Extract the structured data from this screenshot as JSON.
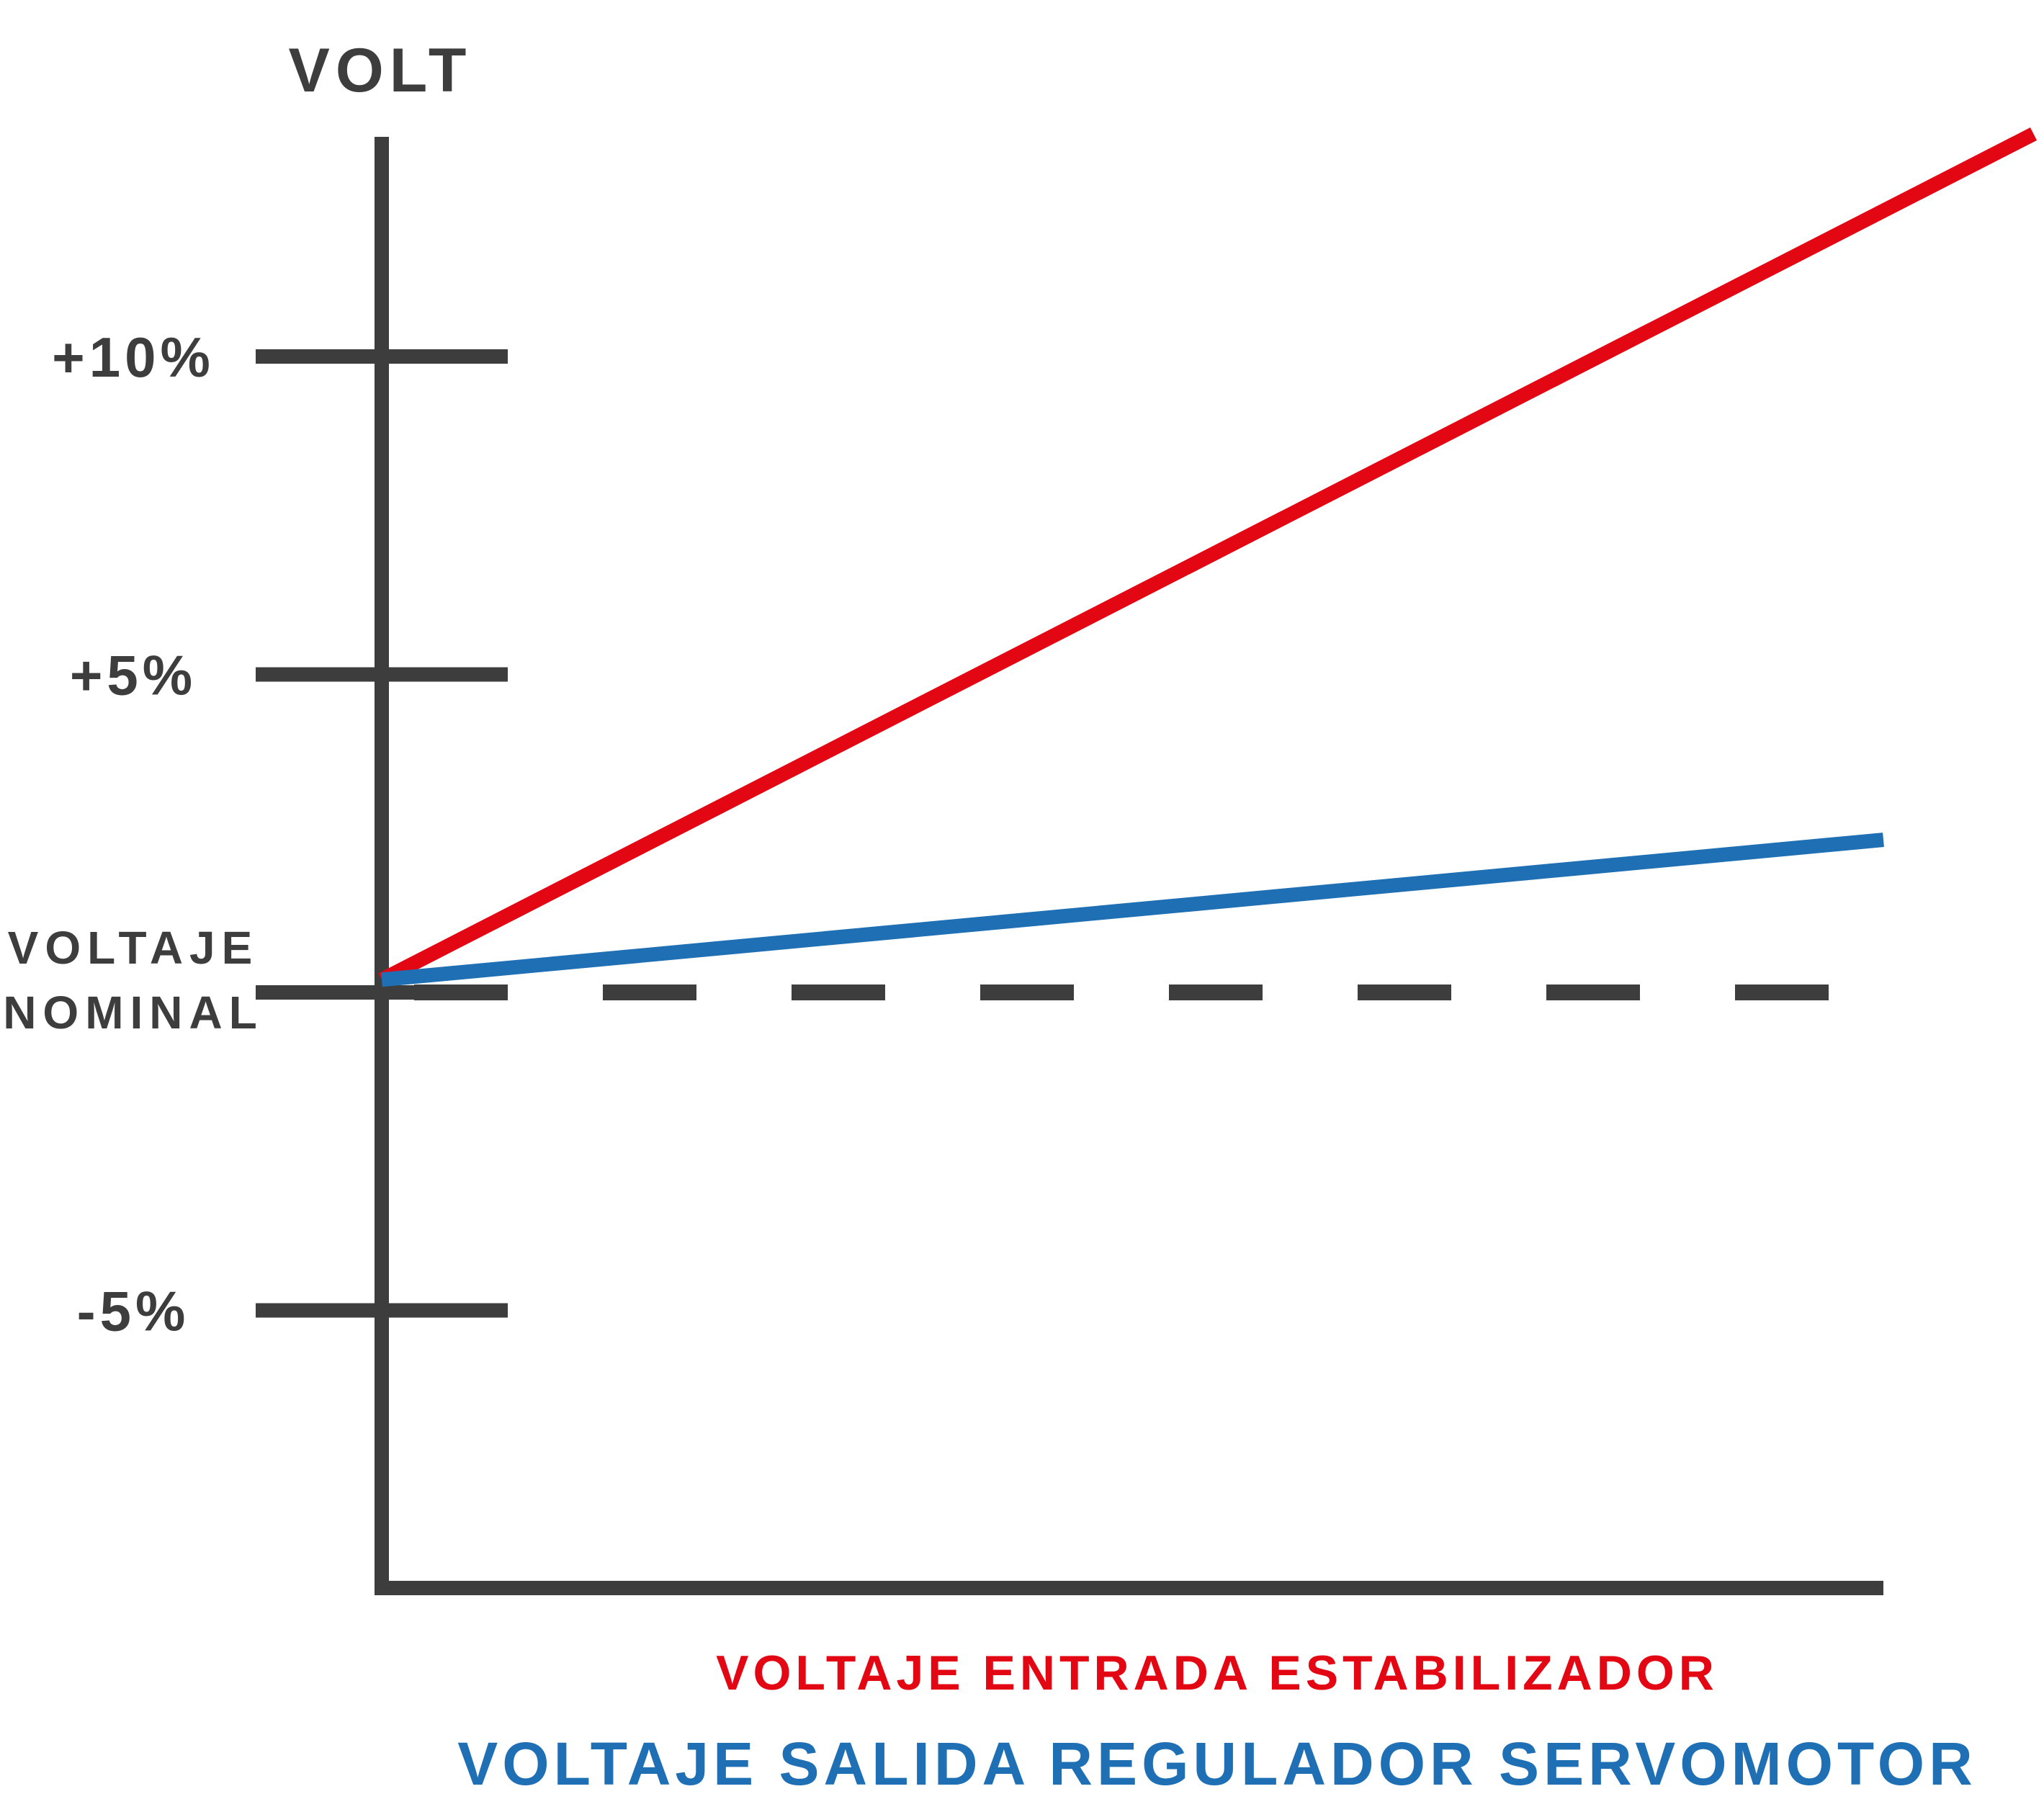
{
  "chart_data": {
    "type": "line",
    "title": "",
    "ylabel": "VOLT",
    "xlabel": "",
    "ylim": [
      -9.5,
      13.5
    ],
    "xlim": [
      0,
      1
    ],
    "yticks": [
      {
        "value": 10,
        "label": "+10%"
      },
      {
        "value": 5,
        "label": "+5%"
      },
      {
        "value": 0,
        "label_lines": [
          "VOLTAJE",
          "NOMINAL"
        ]
      },
      {
        "value": -5,
        "label": "-5%"
      }
    ],
    "reference_line": {
      "value": 0,
      "style": "dashed",
      "color": "#3d3d3d"
    },
    "grid": false,
    "legend_position": "bottom",
    "series": [
      {
        "name": "VOLTAJE ENTRADA ESTABILIZADOR",
        "color": "#e30613",
        "x": [
          0,
          1.1
        ],
        "y": [
          0.2,
          13.5
        ]
      },
      {
        "name": "VOLTAJE SALIDA REGULADOR SERVOMOTOR",
        "color": "#1f6fb5",
        "x": [
          0,
          1
        ],
        "y": [
          0.2,
          2.4
        ]
      }
    ],
    "axis_color": "#3d3d3d"
  }
}
